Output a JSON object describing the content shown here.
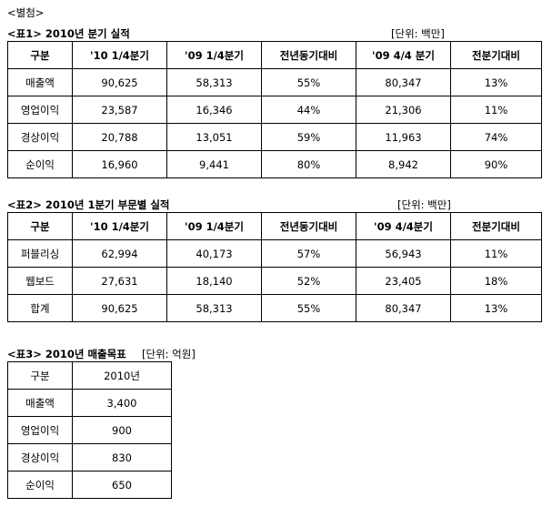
{
  "heading": "<별첨>",
  "table1": {
    "caption": "<표1> 2010년 분기 실적",
    "unit": "[단위: 백만]",
    "headers": [
      "구분",
      "'10 1/4분기",
      "'09 1/4분기",
      "전년동기대비",
      "'09 4/4 분기",
      "전분기대비"
    ],
    "rows": [
      [
        "매출액",
        "90,625",
        "58,313",
        "55%",
        "80,347",
        "13%"
      ],
      [
        "영업이익",
        "23,587",
        "16,346",
        "44%",
        "21,306",
        "11%"
      ],
      [
        "경상이익",
        "20,788",
        "13,051",
        "59%",
        "11,963",
        "74%"
      ],
      [
        "순이익",
        "16,960",
        "9,441",
        "80%",
        "8,942",
        "90%"
      ]
    ]
  },
  "table2": {
    "caption": "<표2> 2010년 1분기 부문별 실적",
    "unit": "[단위: 백만]",
    "headers": [
      "구분",
      "'10 1/4분기",
      "'09 1/4분기",
      "전년동기대비",
      "'09 4/4분기",
      "전분기대비"
    ],
    "rows": [
      [
        "퍼블리싱",
        "62,994",
        "40,173",
        "57%",
        "56,943",
        "11%"
      ],
      [
        "웹보드",
        "27,631",
        "18,140",
        "52%",
        "23,405",
        "18%"
      ],
      [
        "합계",
        "90,625",
        "58,313",
        "55%",
        "80,347",
        "13%"
      ]
    ]
  },
  "table3": {
    "caption": "<표3> 2010년 매출목표",
    "unit": "[단위: 억원]",
    "headers": [
      "구분",
      "2010년"
    ],
    "rows": [
      [
        "매출액",
        "3,400"
      ],
      [
        "영업이익",
        "900"
      ],
      [
        "경상이익",
        "830"
      ],
      [
        "순이익",
        "650"
      ]
    ]
  }
}
